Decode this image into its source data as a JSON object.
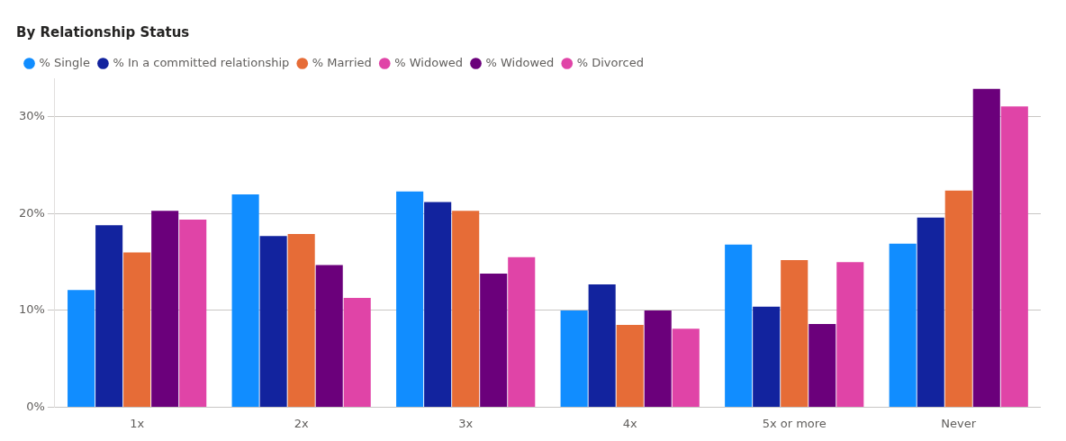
{
  "chart_data": {
    "type": "bar",
    "title": "By Relationship Status",
    "categories": [
      "1x",
      "2x",
      "3x",
      "4x",
      "5x or more",
      "Never"
    ],
    "series": [
      {
        "name": "% Single",
        "color": "#118dff",
        "values": [
          12.1,
          22.0,
          22.3,
          10.0,
          16.8,
          16.9
        ]
      },
      {
        "name": "% In a committed relationship",
        "color": "#12239e",
        "values": [
          18.8,
          17.7,
          21.2,
          12.7,
          10.4,
          19.6
        ]
      },
      {
        "name": "% Married",
        "color": "#e66c37",
        "values": [
          16.0,
          17.9,
          20.3,
          8.5,
          15.2,
          22.4
        ]
      },
      {
        "name": "% Widowed",
        "color": "#e044a7",
        "values": [
          null,
          null,
          null,
          null,
          null,
          null
        ]
      },
      {
        "name": "% Widowed",
        "color": "#6b007b",
        "values": [
          20.3,
          14.7,
          13.8,
          10.0,
          8.6,
          32.9
        ]
      },
      {
        "name": "% Divorced",
        "color": "#e044a7",
        "values": [
          19.4,
          11.3,
          15.5,
          8.1,
          15.0,
          31.1
        ]
      }
    ],
    "ylim": [
      0,
      34
    ],
    "yticks": [
      {
        "value": 0,
        "label": "0%"
      },
      {
        "value": 10,
        "label": "10%"
      },
      {
        "value": 20,
        "label": "20%"
      },
      {
        "value": 30,
        "label": "30%"
      }
    ],
    "grid": "y",
    "legend": "top left"
  }
}
